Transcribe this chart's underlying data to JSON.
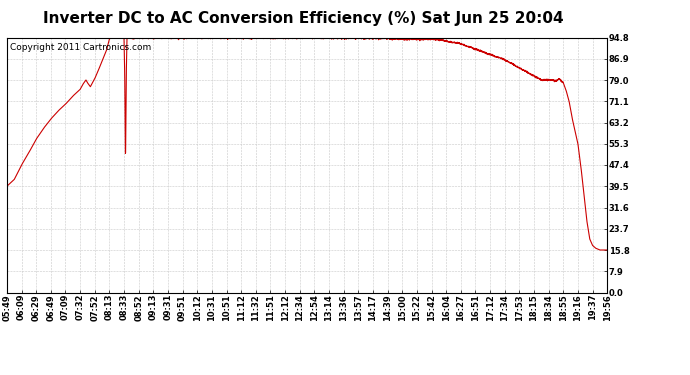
{
  "title": "Inverter DC to AC Conversion Efficiency (%) Sat Jun 25 20:04",
  "copyright": "Copyright 2011 Cartronics.com",
  "line_color": "#cc0000",
  "bg_color": "#ffffff",
  "plot_bg_color": "#ffffff",
  "grid_color": "#c8c8c8",
  "yticks": [
    0.0,
    7.9,
    15.8,
    23.7,
    31.6,
    39.5,
    47.4,
    55.3,
    63.2,
    71.1,
    79.0,
    86.9,
    94.8
  ],
  "ymin": 0.0,
  "ymax": 94.8,
  "xtick_labels": [
    "05:49",
    "06:09",
    "06:29",
    "06:49",
    "07:09",
    "07:32",
    "07:52",
    "08:13",
    "08:33",
    "08:52",
    "09:13",
    "09:31",
    "09:51",
    "10:12",
    "10:31",
    "10:51",
    "11:12",
    "11:32",
    "11:51",
    "12:12",
    "12:34",
    "12:54",
    "13:14",
    "13:36",
    "13:57",
    "14:17",
    "14:39",
    "15:00",
    "15:22",
    "15:42",
    "16:04",
    "16:27",
    "16:51",
    "17:12",
    "17:34",
    "17:53",
    "18:15",
    "18:34",
    "18:55",
    "19:16",
    "19:37",
    "19:56"
  ],
  "title_fontsize": 11,
  "copyright_fontsize": 6.5,
  "tick_fontsize": 6,
  "line_width": 0.8,
  "control_points": [
    [
      0,
      39.5
    ],
    [
      0.5,
      42.0
    ],
    [
      1,
      47.4
    ],
    [
      1.5,
      52.0
    ],
    [
      2,
      57.0
    ],
    [
      2.5,
      61.0
    ],
    [
      3,
      64.5
    ],
    [
      3.5,
      67.5
    ],
    [
      4,
      70.0
    ],
    [
      4.5,
      73.0
    ],
    [
      5,
      75.5
    ],
    [
      5.2,
      77.5
    ],
    [
      5.4,
      79.0
    ],
    [
      5.5,
      78.0
    ],
    [
      5.7,
      76.5
    ],
    [
      6,
      79.5
    ],
    [
      6.2,
      82.0
    ],
    [
      6.5,
      86.0
    ],
    [
      6.8,
      90.0
    ],
    [
      7,
      94.2
    ],
    [
      7.1,
      94.7
    ],
    [
      7.2,
      94.8
    ],
    [
      7.9,
      94.8
    ],
    [
      8.0,
      94.7
    ],
    [
      8.05,
      80.0
    ],
    [
      8.1,
      47.4
    ],
    [
      8.15,
      80.0
    ],
    [
      8.2,
      94.6
    ],
    [
      8.3,
      94.8
    ],
    [
      9,
      94.8
    ],
    [
      10,
      94.8
    ],
    [
      11,
      94.8
    ],
    [
      12,
      94.8
    ],
    [
      13,
      94.8
    ],
    [
      14,
      94.8
    ],
    [
      15,
      94.8
    ],
    [
      16,
      94.8
    ],
    [
      17,
      94.8
    ],
    [
      18,
      94.8
    ],
    [
      19,
      94.8
    ],
    [
      20,
      94.8
    ],
    [
      21,
      94.8
    ],
    [
      22,
      94.8
    ],
    [
      23,
      94.7
    ],
    [
      24,
      94.7
    ],
    [
      25,
      94.6
    ],
    [
      26,
      94.5
    ],
    [
      27,
      94.4
    ],
    [
      28,
      94.3
    ],
    [
      29,
      94.2
    ],
    [
      29.5,
      94.0
    ],
    [
      30,
      93.5
    ],
    [
      30.5,
      93.0
    ],
    [
      31,
      92.5
    ],
    [
      31.5,
      91.5
    ],
    [
      32,
      90.5
    ],
    [
      32.5,
      89.5
    ],
    [
      33,
      88.5
    ],
    [
      33.5,
      87.5
    ],
    [
      34,
      86.5
    ],
    [
      34.5,
      85.0
    ],
    [
      35,
      83.5
    ],
    [
      35.5,
      82.0
    ],
    [
      36,
      80.5
    ],
    [
      36.5,
      79.0
    ],
    [
      37,
      79.0
    ],
    [
      37.3,
      79.0
    ],
    [
      37.5,
      78.5
    ],
    [
      37.7,
      79.5
    ],
    [
      38,
      78.0
    ],
    [
      38.2,
      75.0
    ],
    [
      38.4,
      71.0
    ],
    [
      38.6,
      65.0
    ],
    [
      38.8,
      60.0
    ],
    [
      39,
      55.3
    ],
    [
      39.2,
      47.0
    ],
    [
      39.4,
      37.0
    ],
    [
      39.6,
      27.0
    ],
    [
      39.8,
      20.0
    ],
    [
      40,
      17.5
    ],
    [
      40.2,
      16.5
    ],
    [
      40.5,
      15.8
    ],
    [
      41,
      15.8
    ]
  ]
}
